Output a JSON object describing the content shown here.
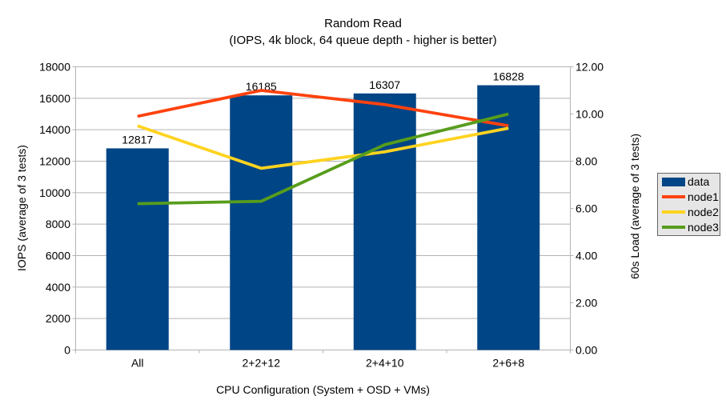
{
  "chart_data": {
    "type": "bar",
    "combo": "bar+line",
    "title": "Random Read",
    "subtitle": "(IOPS, 4k block, 64 queue depth - higher is better)",
    "xlabel": "CPU Configuration (System + OSD + VMs)",
    "ylabel_left": "IOPS (average of 3 tests)",
    "ylabel_right": "60s Load (average of 3 tests)",
    "categories": [
      "All",
      "2+2+12",
      "2+4+10",
      "2+6+8"
    ],
    "axis_left": {
      "min": 0,
      "max": 18000,
      "step": 2000,
      "decimals": 0
    },
    "axis_right": {
      "min": 0,
      "max": 12,
      "step": 2,
      "decimals": 2
    },
    "grid": "horizontal-only",
    "legend_position": "right",
    "series": [
      {
        "name": "data",
        "type": "bar",
        "axis": "left",
        "color": "#004586",
        "values": [
          12817,
          16185,
          16307,
          16828
        ],
        "data_labels": [
          "12817",
          "16185",
          "16307",
          "16828"
        ]
      },
      {
        "name": "node1",
        "type": "line",
        "axis": "right",
        "color": "#ff420e",
        "values": [
          9.9,
          11.0,
          10.4,
          9.5
        ]
      },
      {
        "name": "node2",
        "type": "line",
        "axis": "right",
        "color": "#ffd320",
        "values": [
          9.5,
          7.7,
          8.4,
          9.4
        ]
      },
      {
        "name": "node3",
        "type": "line",
        "axis": "right",
        "color": "#579d1c",
        "values": [
          6.2,
          6.3,
          8.7,
          10.0
        ]
      }
    ],
    "colors": {
      "background": "#ffffff",
      "grid": "#b3b3b3",
      "axis": "#b3b3b3",
      "text": "#000000",
      "legend_bg": "#e6e6e6",
      "legend_border": "#666666"
    }
  }
}
